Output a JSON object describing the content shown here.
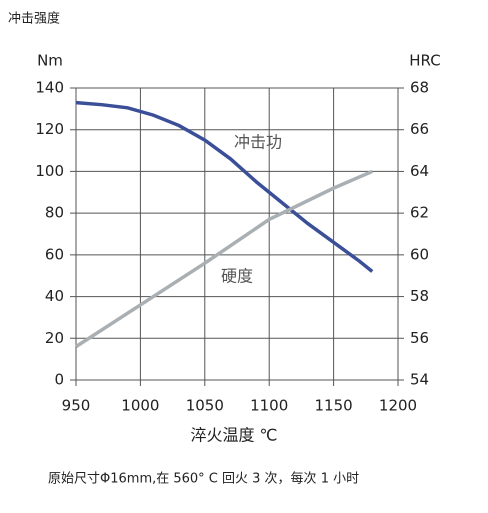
{
  "chart_data": {
    "type": "line",
    "title": "冲击强度",
    "y_label": "Nm",
    "y2_label": "HRC",
    "x_label": "淬火温度 ℃",
    "xlim": [
      950,
      1200
    ],
    "xticks": [
      950,
      1000,
      1050,
      1100,
      1150,
      1200
    ],
    "ylim": [
      0,
      140
    ],
    "yticks": [
      0,
      20,
      40,
      60,
      80,
      100,
      120,
      140
    ],
    "y2lim": [
      54,
      68
    ],
    "y2ticks": [
      54,
      56,
      58,
      60,
      62,
      64,
      66,
      68
    ],
    "grid": true,
    "series": [
      {
        "name": "冲击功",
        "color": "#3b4f99",
        "x": [
          950,
          970,
          990,
          1010,
          1030,
          1050,
          1070,
          1090,
          1110,
          1130,
          1150,
          1170,
          1180
        ],
        "values": [
          133,
          132,
          130.5,
          127,
          122,
          115,
          106,
          95,
          85,
          75,
          66,
          57,
          52
        ]
      },
      {
        "name": "硬度",
        "color": "#a9afb2",
        "axis": "y2",
        "x": [
          950,
          1000,
          1050,
          1100,
          1150,
          1180
        ],
        "values": [
          55.6,
          57.6,
          59.6,
          61.7,
          63.2,
          64.0
        ]
      }
    ],
    "footnote": "原始尺寸Φ16mm,在 560° C 回火 3 次，每次 1 小时"
  }
}
